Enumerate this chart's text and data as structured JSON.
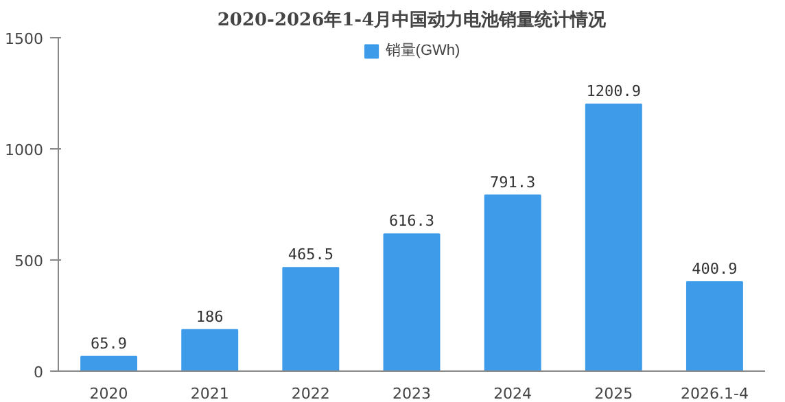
{
  "chart_data": {
    "type": "bar",
    "title": "2020-2026年1-4月中国动力电池销量统计情况",
    "categories": [
      "2020",
      "2021",
      "2022",
      "2023",
      "2024",
      "2025",
      "2026.1-4"
    ],
    "series": [
      {
        "name": "销量(GWh)",
        "color": "#3d9be9",
        "values": [
          65.9,
          186,
          465.5,
          616.3,
          791.3,
          1200.9,
          400.9
        ]
      }
    ],
    "ylim": [
      0,
      1500
    ],
    "yticks": [
      0,
      500,
      1000,
      1500
    ],
    "grid": false,
    "legend": "top",
    "data_labels": true
  }
}
